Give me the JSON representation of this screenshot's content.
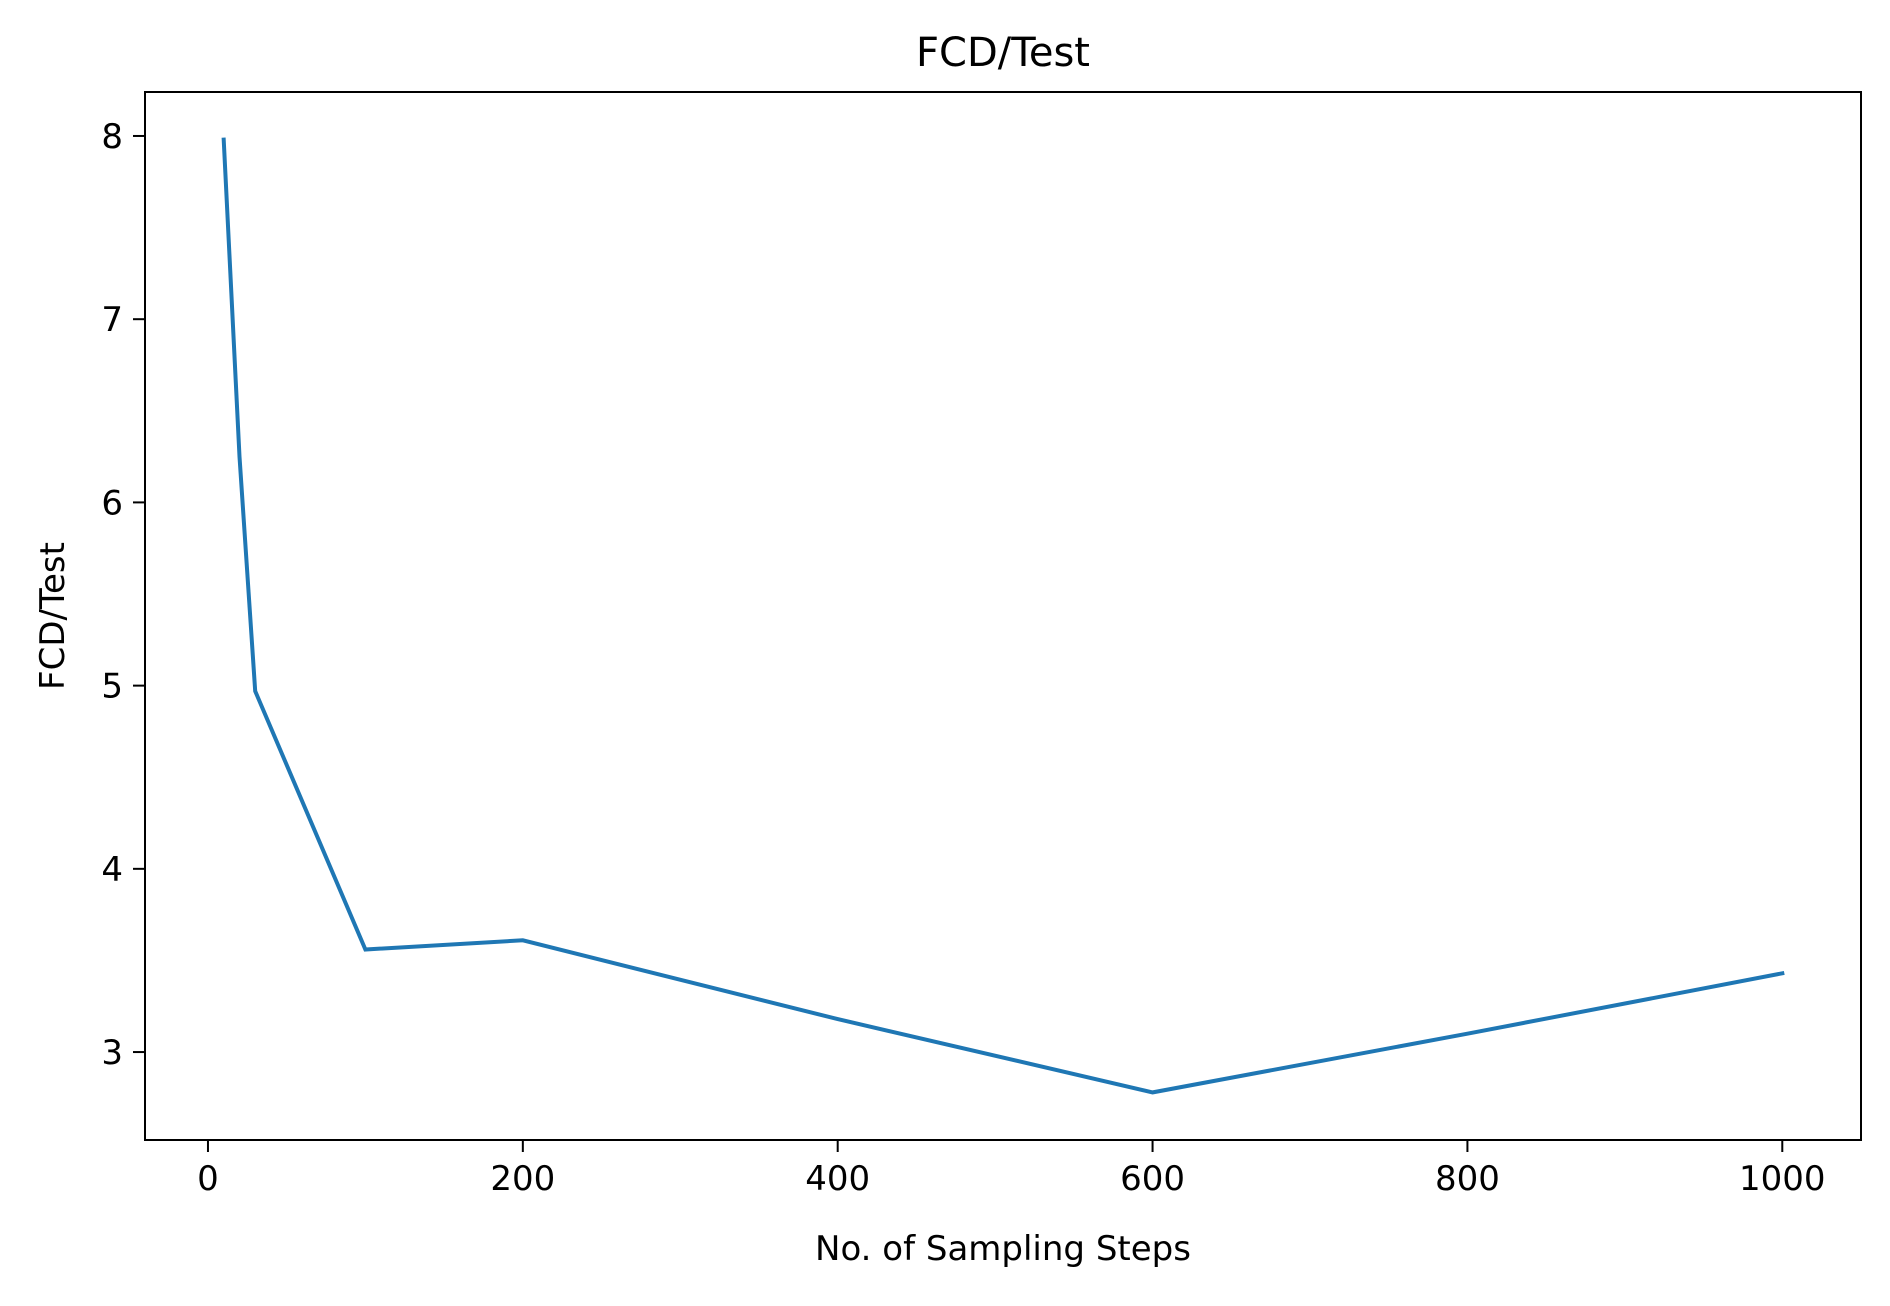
{
  "chart_data": {
    "type": "line",
    "title": "FCD/Test",
    "xlabel": "No. of Sampling Steps",
    "ylabel": "FCD/Test",
    "xlim": [
      -40,
      1050
    ],
    "ylim": [
      2.52,
      8.24
    ],
    "xticks": [
      0,
      200,
      400,
      600,
      800,
      1000
    ],
    "yticks": [
      3,
      4,
      5,
      6,
      7,
      8
    ],
    "grid": false,
    "series": [
      {
        "color": "#1f77b4",
        "x": [
          10,
          20,
          30,
          100,
          200,
          400,
          600,
          800,
          1000
        ],
        "y": [
          7.98,
          6.25,
          4.97,
          3.56,
          3.61,
          3.18,
          2.78,
          3.1,
          3.43
        ]
      }
    ]
  }
}
